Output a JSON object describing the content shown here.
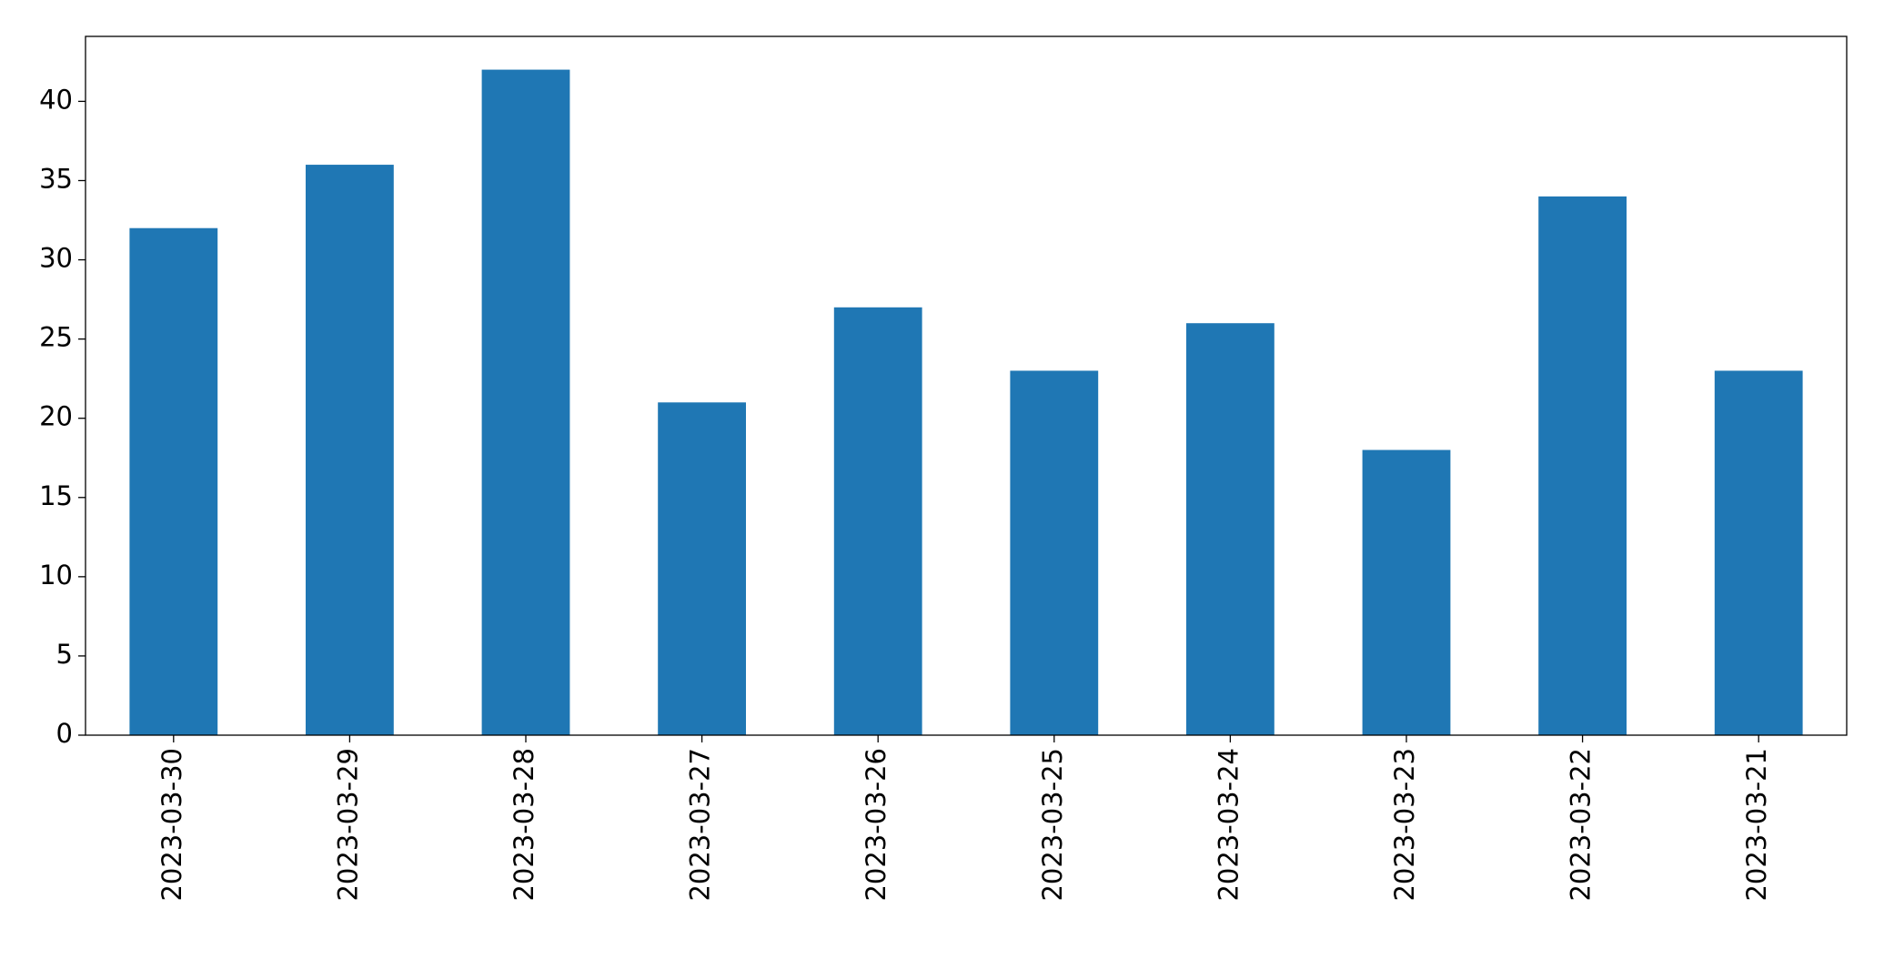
{
  "chart_data": {
    "type": "bar",
    "categories": [
      "2023-03-30",
      "2023-03-29",
      "2023-03-28",
      "2023-03-27",
      "2023-03-26",
      "2023-03-25",
      "2023-03-24",
      "2023-03-23",
      "2023-03-22",
      "2023-03-21"
    ],
    "values": [
      32,
      36,
      42,
      21,
      27,
      23,
      26,
      18,
      34,
      23
    ],
    "color": "#1f77b4",
    "ylim": [
      0,
      44.1
    ],
    "yticks": [
      0,
      5,
      10,
      15,
      20,
      25,
      30,
      35,
      40
    ],
    "grid": false
  }
}
